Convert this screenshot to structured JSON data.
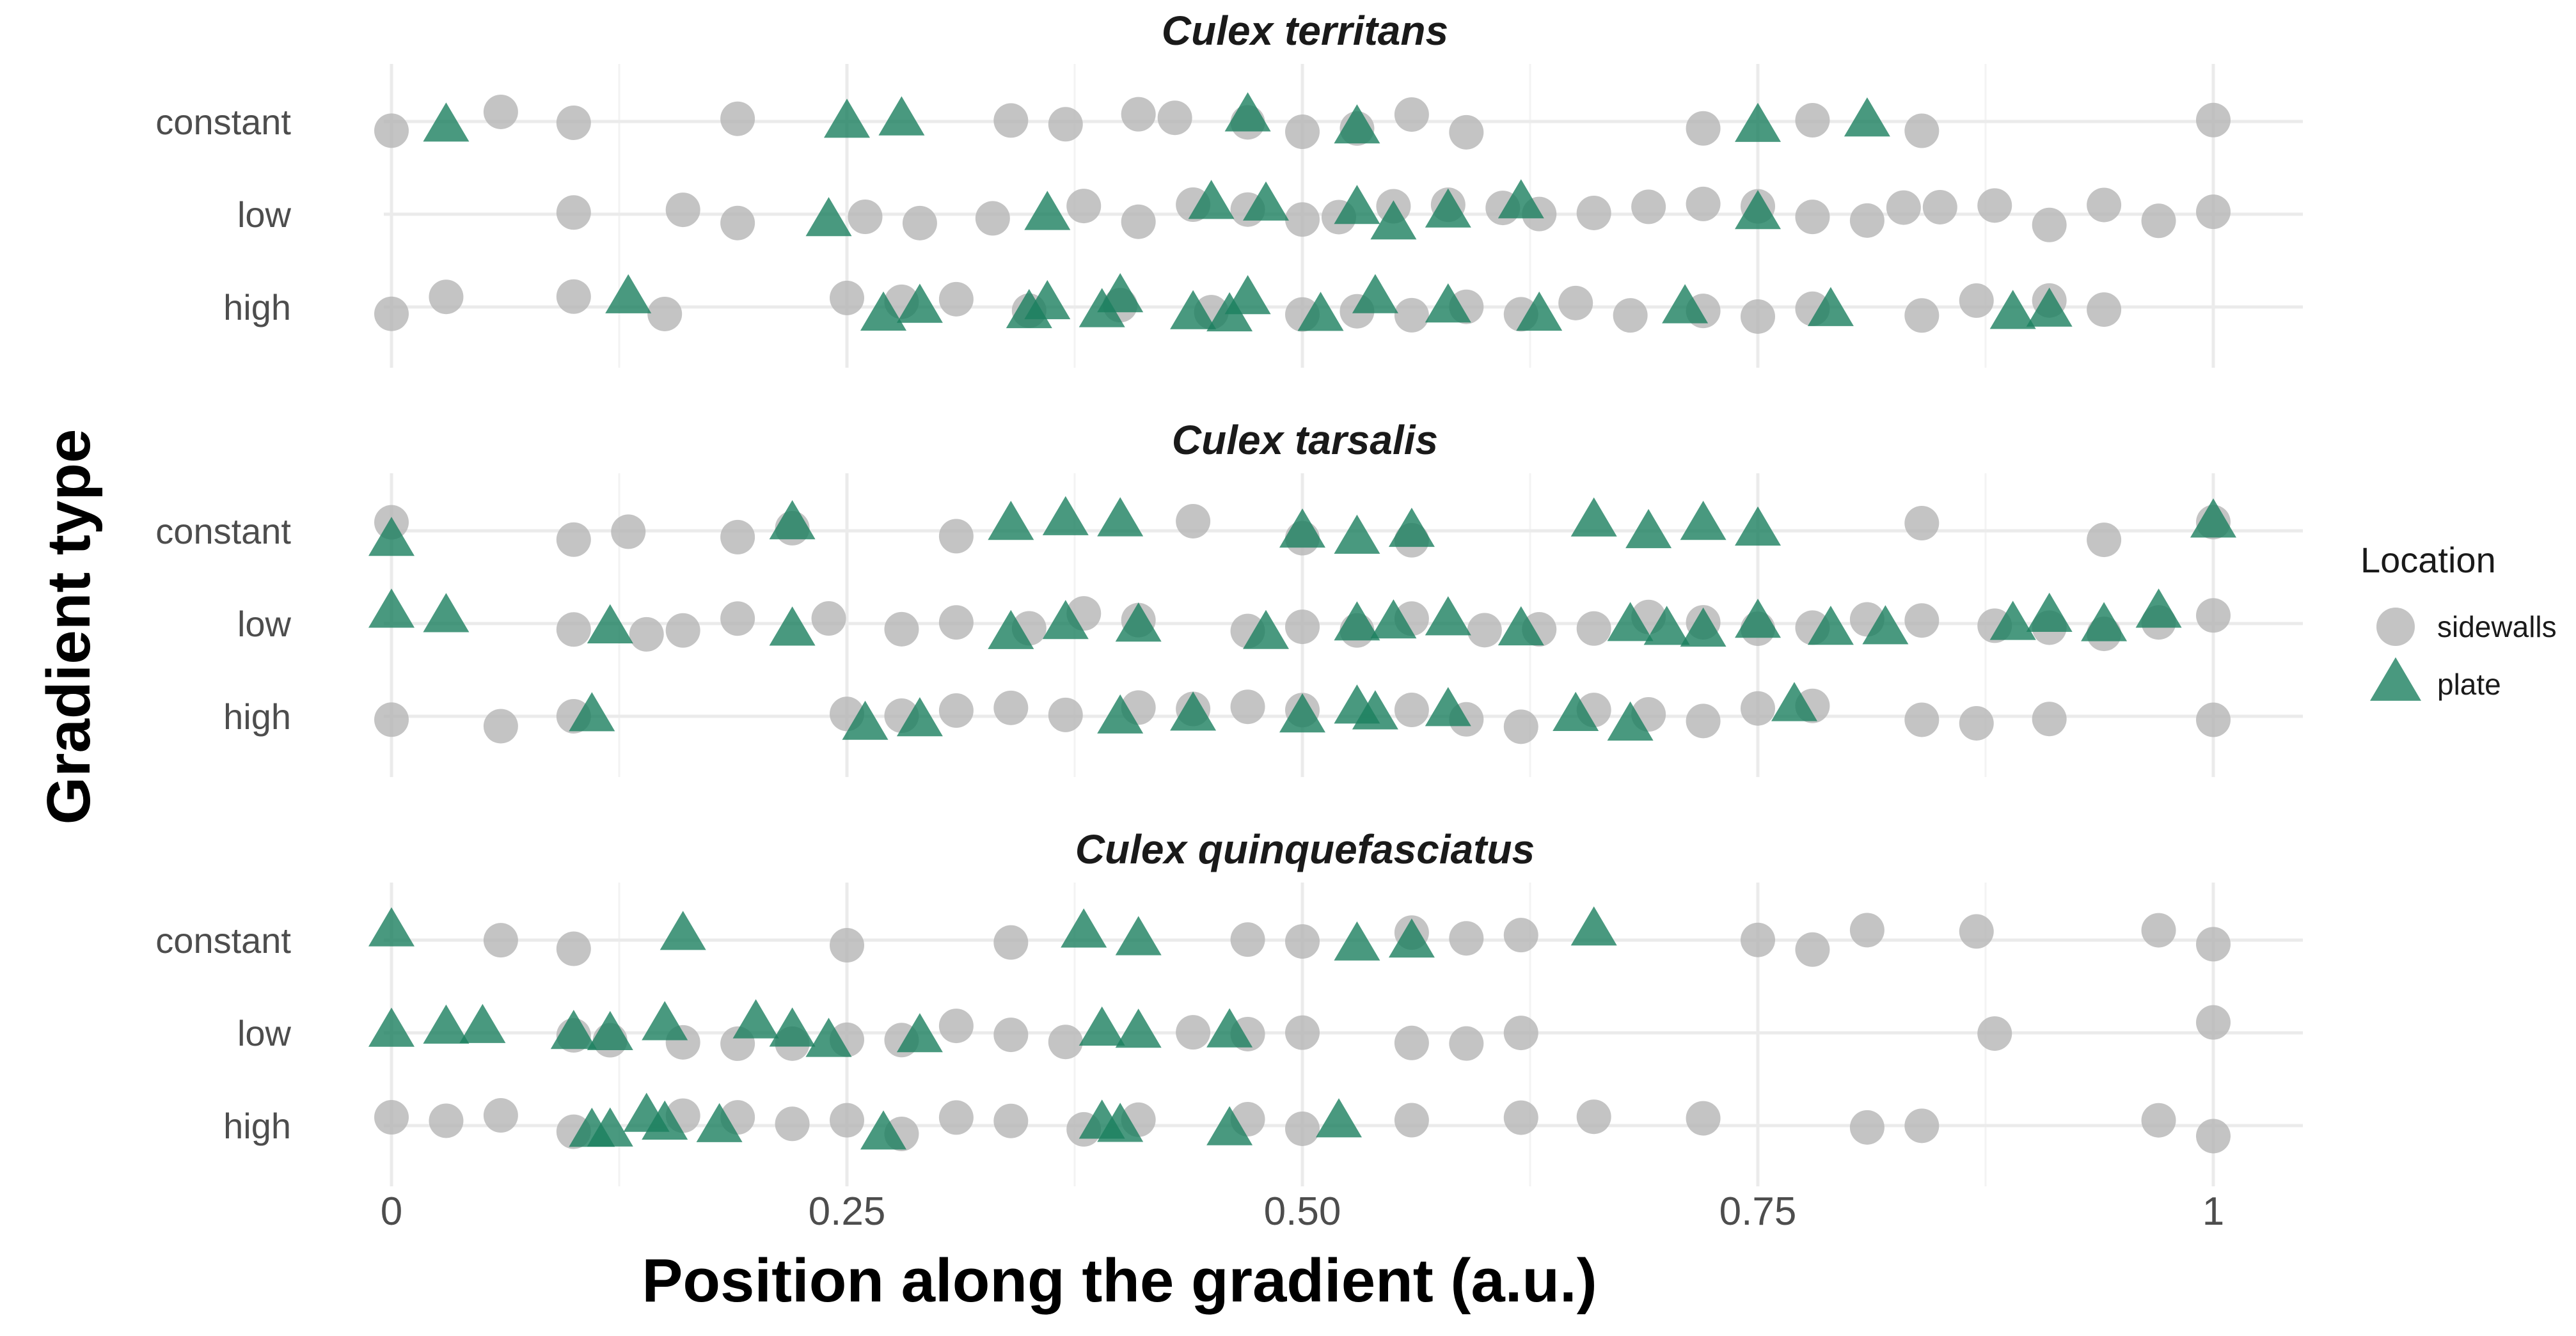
{
  "chart_data": {
    "type": "scatter",
    "xlabel": "Position along the gradient (a.u.)",
    "ylabel": "Gradient type",
    "xlim": [
      0,
      1
    ],
    "x_ticks": [
      "0",
      "0.25",
      "0.50",
      "0.75",
      "1"
    ],
    "x_tick_values": [
      0,
      0.25,
      0.5,
      0.75,
      1
    ],
    "categories": [
      "constant",
      "low",
      "high"
    ],
    "grid": true,
    "legend": {
      "title": "Location",
      "position": "right",
      "entries": [
        {
          "label": "sidewalls",
          "shape": "circle",
          "color": "#b3b3b3"
        },
        {
          "label": "plate",
          "shape": "triangle",
          "color": "#1b7f5f"
        }
      ]
    },
    "panels": [
      {
        "title": "Culex territans",
        "series": [
          {
            "name": "sidewalls",
            "points": {
              "constant": [
                0,
                0.06,
                0.1,
                0.19,
                0.34,
                0.37,
                0.41,
                0.43,
                0.47,
                0.5,
                0.53,
                0.56,
                0.59,
                0.72,
                0.78,
                0.84,
                1
              ],
              "low": [
                0.1,
                0.16,
                0.19,
                0.26,
                0.29,
                0.33,
                0.38,
                0.41,
                0.44,
                0.47,
                0.5,
                0.52,
                0.55,
                0.58,
                0.61,
                0.63,
                0.66,
                0.69,
                0.72,
                0.75,
                0.78,
                0.81,
                0.83,
                0.85,
                0.88,
                0.91,
                0.94,
                0.97,
                1
              ],
              "high": [
                0,
                0.03,
                0.1,
                0.15,
                0.25,
                0.28,
                0.31,
                0.35,
                0.4,
                0.45,
                0.5,
                0.53,
                0.56,
                0.59,
                0.62,
                0.65,
                0.68,
                0.72,
                0.75,
                0.78,
                0.84,
                0.87,
                0.91,
                0.94
              ]
            }
          },
          {
            "name": "plate",
            "points": {
              "constant": [
                0.03,
                0.25,
                0.28,
                0.47,
                0.53,
                0.75,
                0.81
              ],
              "low": [
                0.24,
                0.36,
                0.45,
                0.48,
                0.53,
                0.55,
                0.58,
                0.62,
                0.75
              ],
              "high": [
                0.13,
                0.27,
                0.29,
                0.35,
                0.36,
                0.39,
                0.4,
                0.44,
                0.46,
                0.47,
                0.51,
                0.54,
                0.58,
                0.63,
                0.71,
                0.79,
                0.89,
                0.91
              ]
            }
          }
        ]
      },
      {
        "title": "Culex tarsalis",
        "series": [
          {
            "name": "sidewalls",
            "points": {
              "constant": [
                0,
                0.1,
                0.13,
                0.19,
                0.22,
                0.31,
                0.44,
                0.5,
                0.56,
                0.84,
                0.94,
                1
              ],
              "low": [
                0.1,
                0.14,
                0.16,
                0.19,
                0.24,
                0.28,
                0.31,
                0.35,
                0.38,
                0.41,
                0.47,
                0.5,
                0.53,
                0.56,
                0.6,
                0.63,
                0.66,
                0.69,
                0.72,
                0.75,
                0.78,
                0.81,
                0.84,
                0.88,
                0.91,
                0.94,
                0.97,
                1
              ],
              "high": [
                0,
                0.06,
                0.1,
                0.25,
                0.28,
                0.31,
                0.34,
                0.37,
                0.41,
                0.44,
                0.47,
                0.5,
                0.56,
                0.59,
                0.62,
                0.66,
                0.69,
                0.72,
                0.75,
                0.78,
                0.84,
                0.87,
                0.91,
                1
              ]
            }
          },
          {
            "name": "plate",
            "points": {
              "constant": [
                0,
                0.22,
                0.34,
                0.37,
                0.4,
                0.5,
                0.53,
                0.56,
                0.66,
                0.69,
                0.72,
                0.75,
                1
              ],
              "low": [
                0,
                0.03,
                0.12,
                0.22,
                0.34,
                0.37,
                0.41,
                0.48,
                0.53,
                0.55,
                0.58,
                0.62,
                0.68,
                0.7,
                0.72,
                0.75,
                0.79,
                0.82,
                0.89,
                0.91,
                0.94,
                0.97
              ],
              "high": [
                0.11,
                0.26,
                0.29,
                0.4,
                0.44,
                0.5,
                0.53,
                0.54,
                0.58,
                0.65,
                0.68,
                0.77
              ]
            }
          }
        ]
      },
      {
        "title": "Culex quinquefasciatus",
        "series": [
          {
            "name": "sidewalls",
            "points": {
              "constant": [
                0.06,
                0.1,
                0.25,
                0.34,
                0.47,
                0.5,
                0.56,
                0.59,
                0.62,
                0.75,
                0.78,
                0.81,
                0.87,
                0.97,
                1
              ],
              "low": [
                0.1,
                0.12,
                0.16,
                0.19,
                0.22,
                0.25,
                0.28,
                0.31,
                0.34,
                0.37,
                0.44,
                0.47,
                0.5,
                0.56,
                0.59,
                0.62,
                0.88,
                1
              ],
              "high": [
                0,
                0.03,
                0.06,
                0.1,
                0.16,
                0.19,
                0.22,
                0.25,
                0.28,
                0.31,
                0.34,
                0.38,
                0.41,
                0.47,
                0.5,
                0.56,
                0.62,
                0.66,
                0.72,
                0.81,
                0.84,
                0.97,
                1
              ]
            }
          },
          {
            "name": "plate",
            "points": {
              "constant": [
                0,
                0.16,
                0.38,
                0.41,
                0.53,
                0.56,
                0.66
              ],
              "low": [
                0,
                0.03,
                0.05,
                0.1,
                0.12,
                0.15,
                0.2,
                0.22,
                0.24,
                0.29,
                0.39,
                0.41,
                0.46
              ],
              "high": [
                0.11,
                0.12,
                0.14,
                0.15,
                0.18,
                0.27,
                0.39,
                0.4,
                0.46,
                0.52
              ]
            }
          }
        ]
      }
    ]
  }
}
